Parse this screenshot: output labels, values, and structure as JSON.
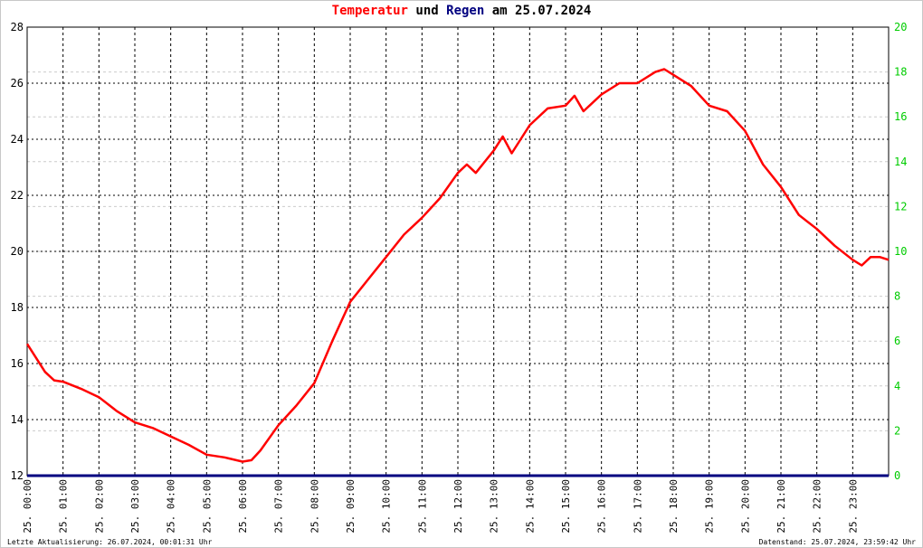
{
  "chart_data": {
    "type": "line",
    "title": {
      "part1": "Temperatur",
      "part2": "und",
      "part3": "Regen",
      "part4": "am 25.07.2024",
      "color1": "#ff0000",
      "color3": "#000080"
    },
    "y_left": {
      "min": 12,
      "max": 28,
      "ticks": [
        12,
        14,
        16,
        18,
        20,
        22,
        24,
        26,
        28
      ]
    },
    "y_right": {
      "min": 0,
      "max": 20,
      "ticks": [
        0,
        2,
        4,
        6,
        8,
        10,
        12,
        14,
        16,
        18,
        20
      ],
      "color": "#00cc00"
    },
    "x_labels": [
      "25. 00:00",
      "25. 01:00",
      "25. 02:00",
      "25. 03:00",
      "25. 04:00",
      "25. 05:00",
      "25. 06:00",
      "25. 07:00",
      "25. 08:00",
      "25. 09:00",
      "25. 10:00",
      "25. 11:00",
      "25. 12:00",
      "25. 13:00",
      "25. 14:00",
      "25. 15:00",
      "25. 16:00",
      "25. 17:00",
      "25. 18:00",
      "25. 19:00",
      "25. 20:00",
      "25. 21:00",
      "25. 22:00",
      "25. 23:00"
    ],
    "x_range_hours": [
      0,
      24
    ],
    "grid": true,
    "series": [
      {
        "color": "#ff0000",
        "axis": "left",
        "x": [
          0,
          0.25,
          0.5,
          0.75,
          1.0,
          1.5,
          2.0,
          2.5,
          3.0,
          3.5,
          4.0,
          4.5,
          5.0,
          5.5,
          6.0,
          6.25,
          6.5,
          7.0,
          7.5,
          8.0,
          8.5,
          9.0,
          9.5,
          10.0,
          10.5,
          11.0,
          11.5,
          12.0,
          12.25,
          12.5,
          13.0,
          13.25,
          13.5,
          14.0,
          14.5,
          15.0,
          15.25,
          15.5,
          16.0,
          16.5,
          17.0,
          17.5,
          17.75,
          18.0,
          18.5,
          19.0,
          19.5,
          20.0,
          20.5,
          21.0,
          21.5,
          22.0,
          22.5,
          23.0,
          23.25,
          23.5,
          23.75,
          24.0
        ],
        "values": [
          16.7,
          16.2,
          15.7,
          15.4,
          15.35,
          15.1,
          14.8,
          14.3,
          13.9,
          13.7,
          13.4,
          13.1,
          12.75,
          12.65,
          12.5,
          12.55,
          12.9,
          13.8,
          14.5,
          15.3,
          16.8,
          18.2,
          19.0,
          19.8,
          20.6,
          21.2,
          21.9,
          22.8,
          23.1,
          22.8,
          23.6,
          24.1,
          23.5,
          24.5,
          25.1,
          25.2,
          25.55,
          25.0,
          25.6,
          26.0,
          26.0,
          26.4,
          26.5,
          26.3,
          25.9,
          25.2,
          25.0,
          24.3,
          23.1,
          22.3,
          21.3,
          20.8,
          20.2,
          19.7,
          19.5,
          19.8,
          19.8,
          19.7
        ]
      },
      {
        "color": "#000080",
        "axis": "right",
        "x": [
          0,
          24
        ],
        "values": [
          0,
          0
        ]
      }
    ]
  },
  "footer": {
    "left": "Letzte Aktualisierung: 26.07.2024, 00:01:31 Uhr",
    "right": "Datenstand: 25.07.2024, 23:59:42 Uhr"
  }
}
